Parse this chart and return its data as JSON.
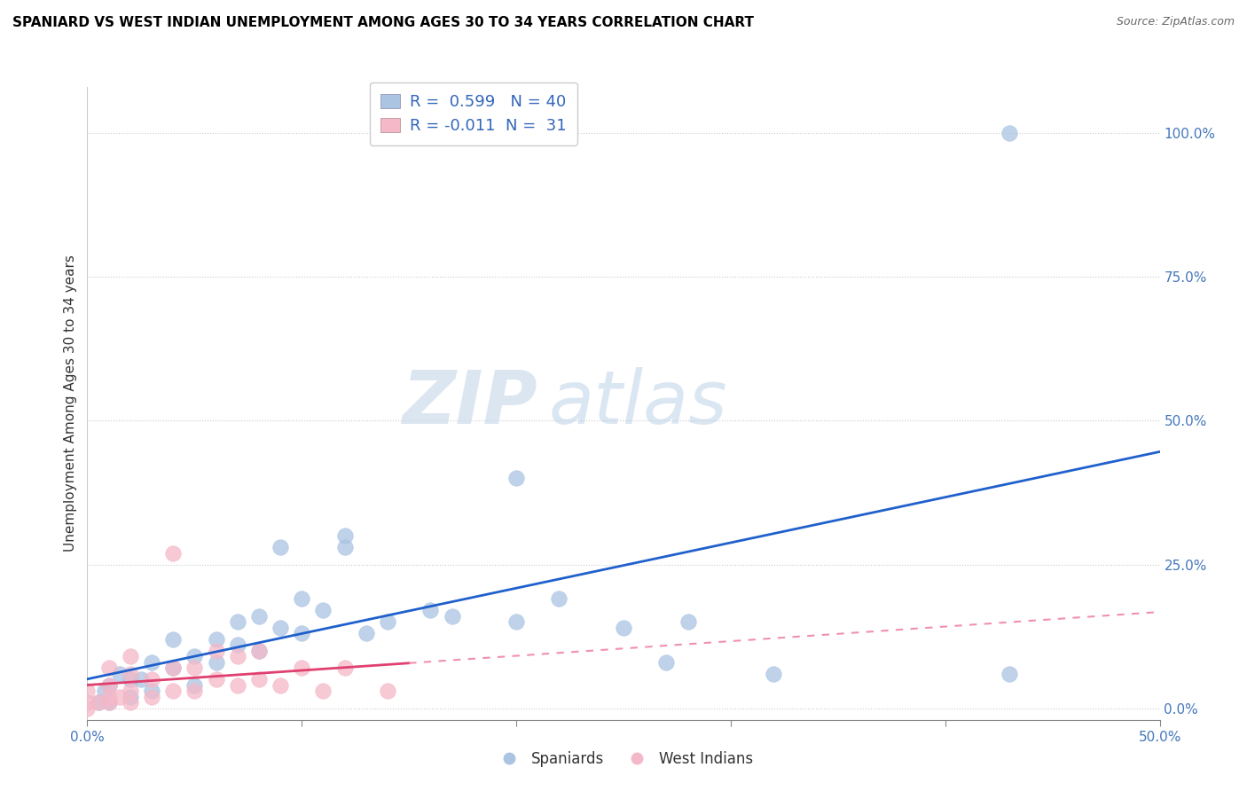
{
  "title": "SPANIARD VS WEST INDIAN UNEMPLOYMENT AMONG AGES 30 TO 34 YEARS CORRELATION CHART",
  "source": "Source: ZipAtlas.com",
  "ylabel": "Unemployment Among Ages 30 to 34 years",
  "xlim": [
    0.0,
    0.5
  ],
  "ylim": [
    -0.02,
    1.08
  ],
  "ytick_values": [
    0.0,
    0.25,
    0.5,
    0.75,
    1.0
  ],
  "xtick_values": [
    0.0,
    0.1,
    0.2,
    0.3,
    0.4,
    0.5
  ],
  "spaniards_R": 0.599,
  "spaniards_N": 40,
  "west_indians_R": -0.011,
  "west_indians_N": 31,
  "spaniard_color": "#aac4e2",
  "west_indian_color": "#f5b8c8",
  "spaniard_line_color": "#2060cc",
  "west_indian_line_solid_color": "#e04070",
  "west_indian_line_dash_color": "#f090b0",
  "watermark_zip": "ZIP",
  "watermark_atlas": "atlas",
  "spaniards_x": [
    0.005,
    0.008,
    0.01,
    0.01,
    0.015,
    0.02,
    0.02,
    0.025,
    0.03,
    0.03,
    0.04,
    0.04,
    0.05,
    0.05,
    0.06,
    0.06,
    0.07,
    0.07,
    0.08,
    0.08,
    0.09,
    0.09,
    0.1,
    0.1,
    0.11,
    0.12,
    0.12,
    0.13,
    0.14,
    0.16,
    0.17,
    0.2,
    0.2,
    0.22,
    0.25,
    0.27,
    0.28,
    0.32,
    0.43,
    0.43
  ],
  "spaniards_y": [
    0.01,
    0.03,
    0.01,
    0.04,
    0.06,
    0.02,
    0.05,
    0.05,
    0.03,
    0.08,
    0.07,
    0.12,
    0.04,
    0.09,
    0.08,
    0.12,
    0.11,
    0.15,
    0.1,
    0.16,
    0.14,
    0.28,
    0.13,
    0.19,
    0.17,
    0.28,
    0.3,
    0.13,
    0.15,
    0.17,
    0.16,
    0.15,
    0.4,
    0.19,
    0.14,
    0.08,
    0.15,
    0.06,
    0.06,
    1.0
  ],
  "west_indians_x": [
    0.0,
    0.0,
    0.0,
    0.005,
    0.01,
    0.01,
    0.01,
    0.01,
    0.015,
    0.02,
    0.02,
    0.02,
    0.02,
    0.03,
    0.03,
    0.04,
    0.04,
    0.04,
    0.05,
    0.05,
    0.06,
    0.06,
    0.07,
    0.07,
    0.08,
    0.08,
    0.09,
    0.1,
    0.11,
    0.12,
    0.14
  ],
  "west_indians_y": [
    0.0,
    0.01,
    0.03,
    0.01,
    0.01,
    0.02,
    0.04,
    0.07,
    0.02,
    0.01,
    0.03,
    0.06,
    0.09,
    0.02,
    0.05,
    0.03,
    0.07,
    0.27,
    0.03,
    0.07,
    0.05,
    0.1,
    0.04,
    0.09,
    0.05,
    0.1,
    0.04,
    0.07,
    0.03,
    0.07,
    0.03
  ]
}
